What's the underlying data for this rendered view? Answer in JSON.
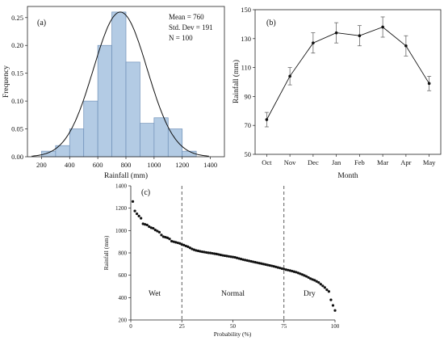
{
  "chart_data": [
    {
      "panel": "(a)",
      "type": "bar",
      "xlabel": "Rainfall (mm)",
      "ylabel": "Frequency",
      "xlim": [
        100,
        1500
      ],
      "ylim": [
        0,
        0.27
      ],
      "xticks": [
        200,
        400,
        600,
        800,
        1000,
        1200,
        1400
      ],
      "yticks": [
        0.0,
        0.05,
        0.1,
        0.15,
        0.2,
        0.25
      ],
      "ytick_labels": [
        "0.00",
        "0.05",
        "0.10",
        "0.15",
        "0.20",
        "0.25"
      ],
      "bins": [
        {
          "from": 200,
          "to": 300,
          "value": 0.01
        },
        {
          "from": 300,
          "to": 400,
          "value": 0.02
        },
        {
          "from": 400,
          "to": 500,
          "value": 0.05
        },
        {
          "from": 500,
          "to": 600,
          "value": 0.1
        },
        {
          "from": 600,
          "to": 700,
          "value": 0.2
        },
        {
          "from": 700,
          "to": 800,
          "value": 0.26
        },
        {
          "from": 800,
          "to": 900,
          "value": 0.17
        },
        {
          "from": 900,
          "to": 1000,
          "value": 0.06
        },
        {
          "from": 1000,
          "to": 1100,
          "value": 0.07
        },
        {
          "from": 1100,
          "to": 1200,
          "value": 0.05
        },
        {
          "from": 1200,
          "to": 1300,
          "value": 0.01
        }
      ],
      "normal_fit": {
        "mean": 760,
        "sd": 191,
        "peak": 0.26
      },
      "stats": [
        "Mean = 760",
        "Std. Dev = 191",
        "N = 100"
      ]
    },
    {
      "panel": "(b)",
      "type": "line",
      "xlabel": "Month",
      "ylabel": "Rainfall (mm)",
      "categories": [
        "Oct",
        "Nov",
        "Dec",
        "Jan",
        "Feb",
        "Mar",
        "Apr",
        "May"
      ],
      "values": [
        74,
        104,
        127,
        134,
        132,
        138,
        125,
        99
      ],
      "errors": [
        5,
        6,
        7,
        7,
        7,
        7,
        7,
        5
      ],
      "ylim": [
        50,
        150
      ],
      "yticks": [
        50,
        70,
        90,
        110,
        130,
        150
      ]
    },
    {
      "panel": "(c)",
      "type": "scatter",
      "xlabel": "Probability (%)",
      "ylabel": "Rainfall (mm)",
      "xlim": [
        0,
        100
      ],
      "ylim": [
        200,
        1400
      ],
      "xticks": [
        0,
        25,
        50,
        75,
        100
      ],
      "yticks": [
        200,
        400,
        600,
        800,
        1000,
        1200,
        1400
      ],
      "thresholds": [
        25,
        75
      ],
      "regions": [
        "Wet",
        "Normal",
        "Dry"
      ],
      "points": [
        [
          1,
          1260
        ],
        [
          2,
          1175
        ],
        [
          3,
          1150
        ],
        [
          4,
          1130
        ],
        [
          5,
          1110
        ],
        [
          6,
          1060
        ],
        [
          7,
          1055
        ],
        [
          8,
          1050
        ],
        [
          9,
          1035
        ],
        [
          10,
          1025
        ],
        [
          11,
          1020
        ],
        [
          12,
          1005
        ],
        [
          13,
          995
        ],
        [
          14,
          985
        ],
        [
          15,
          960
        ],
        [
          16,
          945
        ],
        [
          17,
          940
        ],
        [
          18,
          935
        ],
        [
          19,
          925
        ],
        [
          20,
          905
        ],
        [
          21,
          900
        ],
        [
          22,
          895
        ],
        [
          23,
          890
        ],
        [
          24,
          885
        ],
        [
          25,
          875
        ],
        [
          26,
          870
        ],
        [
          27,
          862
        ],
        [
          28,
          855
        ],
        [
          29,
          845
        ],
        [
          30,
          835
        ],
        [
          31,
          828
        ],
        [
          32,
          822
        ],
        [
          33,
          818
        ],
        [
          34,
          814
        ],
        [
          35,
          810
        ],
        [
          36,
          807
        ],
        [
          37,
          804
        ],
        [
          38,
          801
        ],
        [
          39,
          799
        ],
        [
          40,
          796
        ],
        [
          41,
          793
        ],
        [
          42,
          790
        ],
        [
          43,
          786
        ],
        [
          44,
          782
        ],
        [
          45,
          778
        ],
        [
          46,
          775
        ],
        [
          47,
          772
        ],
        [
          48,
          769
        ],
        [
          49,
          766
        ],
        [
          50,
          763
        ],
        [
          51,
          760
        ],
        [
          52,
          755
        ],
        [
          53,
          750
        ],
        [
          54,
          745
        ],
        [
          55,
          740
        ],
        [
          56,
          736
        ],
        [
          57,
          732
        ],
        [
          58,
          728
        ],
        [
          59,
          724
        ],
        [
          60,
          720
        ],
        [
          61,
          716
        ],
        [
          62,
          712
        ],
        [
          63,
          708
        ],
        [
          64,
          704
        ],
        [
          65,
          700
        ],
        [
          66,
          696
        ],
        [
          67,
          692
        ],
        [
          68,
          688
        ],
        [
          69,
          684
        ],
        [
          70,
          680
        ],
        [
          71,
          675
        ],
        [
          72,
          670
        ],
        [
          73,
          665
        ],
        [
          74,
          660
        ],
        [
          75,
          655
        ],
        [
          76,
          650
        ],
        [
          77,
          646
        ],
        [
          78,
          642
        ],
        [
          79,
          637
        ],
        [
          80,
          632
        ],
        [
          81,
          627
        ],
        [
          82,
          620
        ],
        [
          83,
          613
        ],
        [
          84,
          606
        ],
        [
          85,
          598
        ],
        [
          86,
          590
        ],
        [
          87,
          580
        ],
        [
          88,
          570
        ],
        [
          89,
          562
        ],
        [
          90,
          555
        ],
        [
          91,
          545
        ],
        [
          92,
          535
        ],
        [
          93,
          520
        ],
        [
          94,
          505
        ],
        [
          95,
          490
        ],
        [
          96,
          470
        ],
        [
          97,
          455
        ],
        [
          98,
          380
        ],
        [
          99,
          330
        ],
        [
          100,
          285
        ]
      ]
    }
  ]
}
